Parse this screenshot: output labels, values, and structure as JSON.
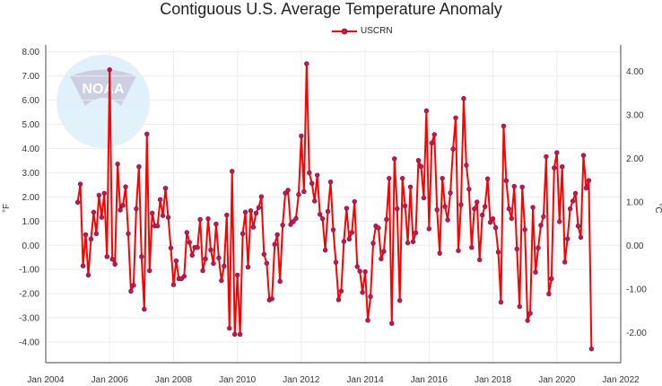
{
  "chart_data": {
    "type": "line",
    "title": "Contiguous U.S. Average Temperature Anomaly",
    "ylabel": "°F",
    "ylabel_right": "°C",
    "series": [
      {
        "name": "USCRN",
        "color": "#ff0000",
        "marker_color": "#c2185b"
      }
    ],
    "x_start": "2005-01",
    "x_step": "month",
    "values": [
      1.78,
      2.53,
      -0.85,
      0.44,
      -1.23,
      0.26,
      1.37,
      0.48,
      2.07,
      1.16,
      2.15,
      -0.47,
      7.26,
      -0.57,
      -0.78,
      3.36,
      1.46,
      1.65,
      2.42,
      0.48,
      -1.9,
      -1.65,
      1.51,
      3.25,
      -0.47,
      -2.64,
      4.6,
      -1.05,
      1.33,
      0.8,
      0.8,
      1.89,
      1.23,
      2.36,
      1.16,
      -0.11,
      -1.63,
      -0.64,
      -1.38,
      -1.38,
      -1.28,
      0.53,
      0.12,
      -0.41,
      -0.09,
      -0.09,
      1.07,
      -1.05,
      -0.56,
      1.1,
      -0.19,
      -0.75,
      0.88,
      -0.52,
      -1.46,
      -0.86,
      1.25,
      -3.43,
      3.06,
      -3.68,
      -1.23,
      -3.68,
      0.48,
      1.37,
      -0.9,
      1.43,
      0.75,
      1.33,
      1.56,
      2.01,
      -0.37,
      -0.74,
      -2.26,
      -2.21,
      0.04,
      0.44,
      -1.49,
      0.84,
      2.16,
      2.28,
      0.86,
      0.98,
      1.11,
      2.1,
      4.52,
      2.22,
      7.51,
      3.0,
      2.56,
      1.83,
      2.9,
      1.28,
      1.1,
      -0.2,
      1.4,
      2.62,
      0.64,
      -0.7,
      -2.25,
      -1.89,
      0.16,
      1.53,
      0.26,
      0.53,
      1.81,
      -0.88,
      -1.07,
      -1.95,
      -1.09,
      -3.1,
      -2.12,
      0.09,
      0.8,
      0.72,
      -0.56,
      -0.25,
      1.07,
      2.77,
      -3.23,
      3.58,
      1.51,
      -2.28,
      2.77,
      1.63,
      0.1,
      2.41,
      0.15,
      0.52,
      3.51,
      3.26,
      1.96,
      5.56,
      0.68,
      4.23,
      4.58,
      1.47,
      -0.33,
      2.77,
      1.6,
      1.05,
      2.17,
      3.98,
      5.27,
      -0.22,
      1.68,
      6.07,
      3.31,
      2.32,
      -0.09,
      1.51,
      1.79,
      -0.6,
      1.25,
      1.6,
      2.75,
      0.95,
      1.1,
      0.73,
      -0.28,
      -2.35,
      4.93,
      2.67,
      1.51,
      1.11,
      2.44,
      -0.15,
      -2.53,
      2.41,
      0.65,
      -3.11,
      -2.81,
      1.57,
      -1.11,
      -0.11,
      0.83,
      1.19,
      3.67,
      -2.01,
      -1.38,
      3.2,
      3.83,
      0.98,
      3.25,
      -0.69,
      0.27,
      1.51,
      1.83,
      2.15,
      0.8,
      0.33,
      3.72,
      2.37,
      2.68,
      -4.28
    ],
    "xlim": [
      "2004-01",
      "2022-01"
    ],
    "ylim": [
      -4.85,
      8.1
    ],
    "x_ticks": [
      "Jan 2004",
      "Jan 2006",
      "Jan 2008",
      "Jan 2010",
      "Jan 2012",
      "Jan 2014",
      "Jan 2016",
      "Jan 2018",
      "Jan 2020",
      "Jan 2022"
    ],
    "y_ticks": [
      "8.00",
      "7.00",
      "6.00",
      "5.00",
      "4.00",
      "3.00",
      "2.00",
      "1.00",
      "0.00",
      "-1.00",
      "-2.00",
      "-3.00",
      "-4.00"
    ],
    "y_ticks_right": [
      "4.00",
      "3.00",
      "2.00",
      "1.00",
      "0.00",
      "-1.00",
      "-2.00"
    ],
    "grid": true,
    "legend_position": "top-center"
  },
  "watermark": {
    "text": "NOAA",
    "ring_text": "NATIONAL OCEANIC AND ATMOSPHERIC ADMINISTRATION · U.S. DEPARTMENT OF COMMERCE"
  }
}
